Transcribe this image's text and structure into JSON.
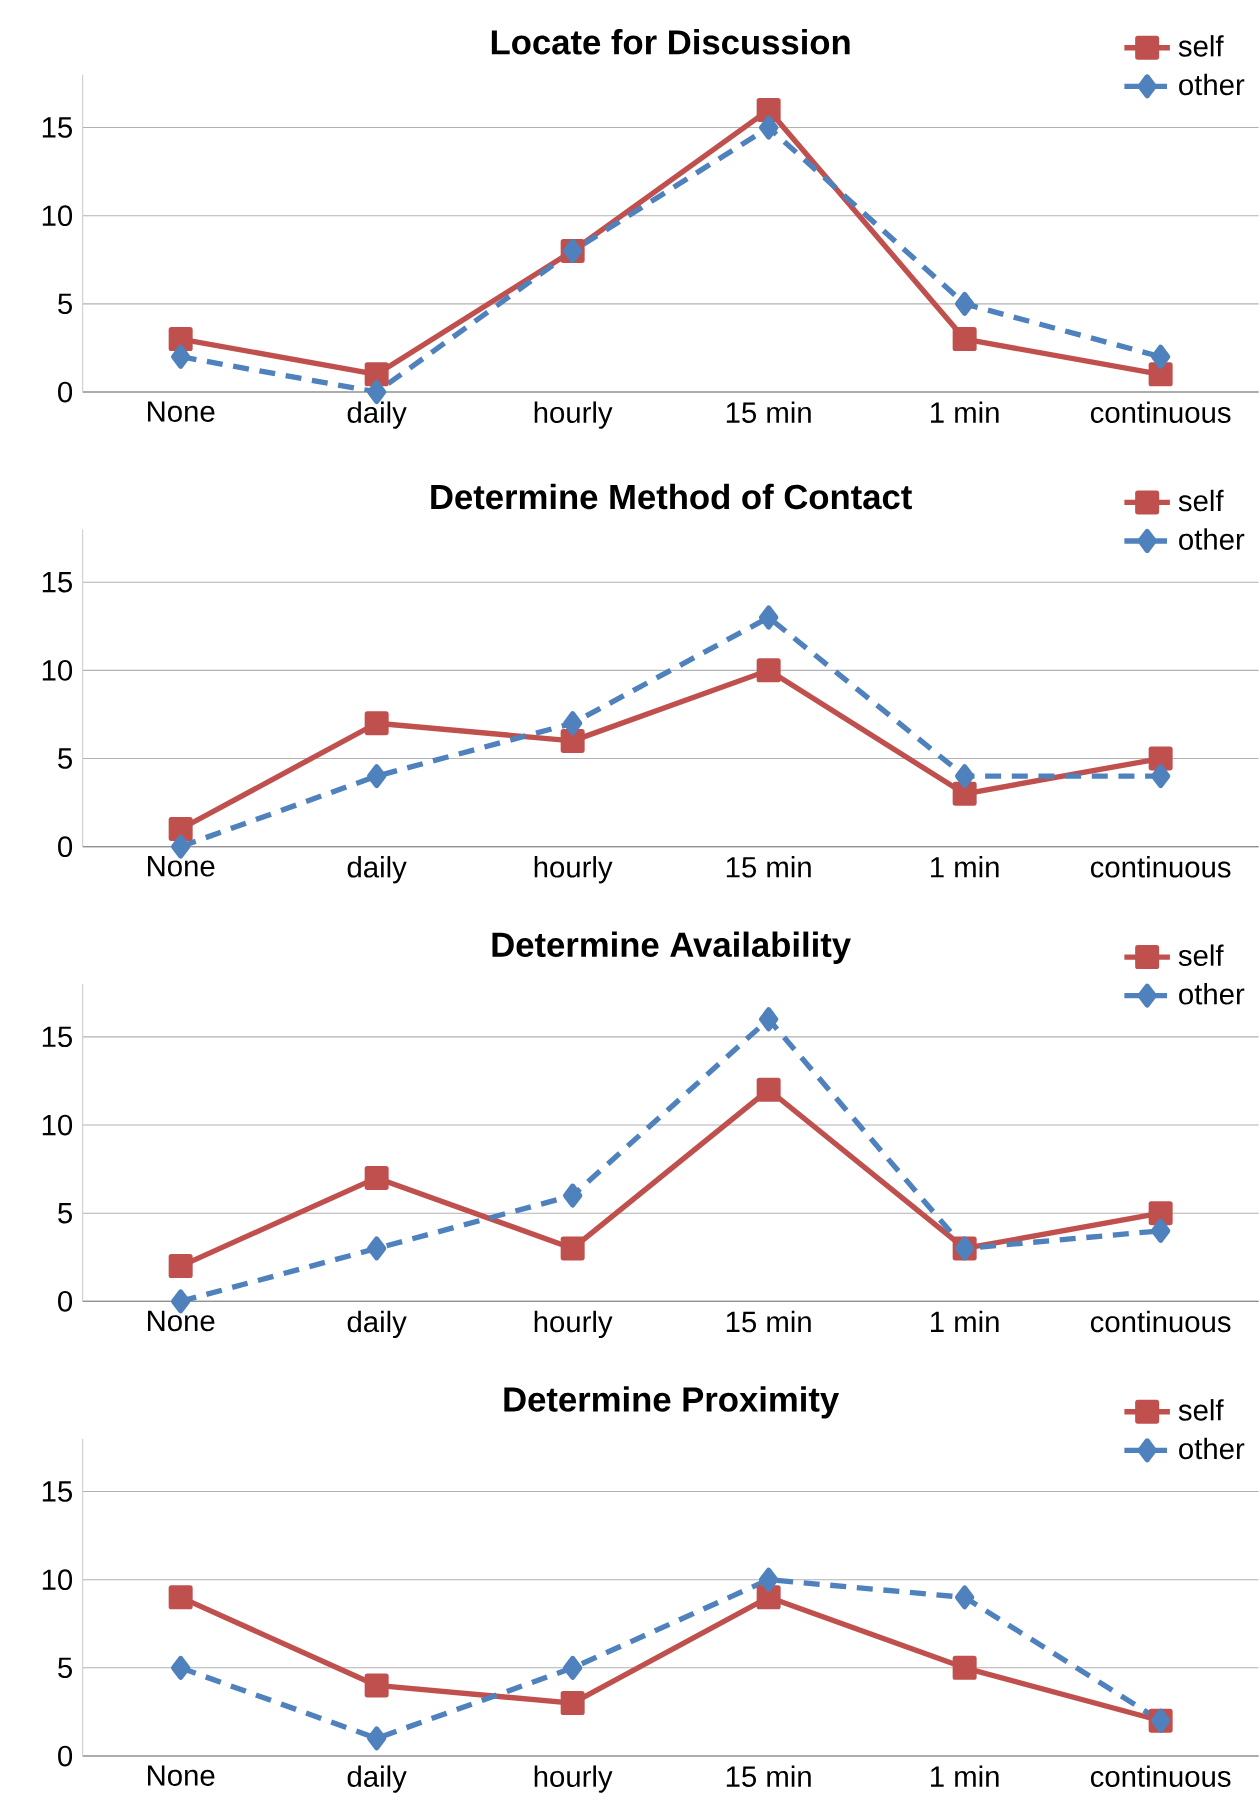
{
  "chart_data": [
    {
      "type": "line",
      "title": "Locate for Discussion",
      "categories": [
        "None",
        "daily",
        "hourly",
        "15 min",
        "1 min",
        "continuous"
      ],
      "ylim": [
        0,
        18
      ],
      "yticks": [
        0,
        5,
        10,
        15
      ],
      "grid": "y",
      "legend": "top right",
      "series": [
        {
          "name": "self",
          "color": "#c0504d",
          "marker": "square",
          "line_style": "solid",
          "values": [
            3,
            1,
            8,
            16,
            3,
            1
          ]
        },
        {
          "name": "other",
          "color": "#4f81bd",
          "marker": "diamond",
          "line_style": "dashed",
          "values": [
            2,
            0,
            8,
            15,
            5,
            2
          ]
        }
      ]
    },
    {
      "type": "line",
      "title": "Determine Method of Contact",
      "categories": [
        "None",
        "daily",
        "hourly",
        "15 min",
        "1 min",
        "continuous"
      ],
      "ylim": [
        0,
        18
      ],
      "yticks": [
        0,
        5,
        10,
        15
      ],
      "grid": "y",
      "legend": "top right",
      "series": [
        {
          "name": "self",
          "color": "#c0504d",
          "marker": "square",
          "line_style": "solid",
          "values": [
            1,
            7,
            6,
            10,
            3,
            5
          ]
        },
        {
          "name": "other",
          "color": "#4f81bd",
          "marker": "diamond",
          "line_style": "dashed",
          "values": [
            0,
            4,
            7,
            13,
            4,
            4
          ]
        }
      ]
    },
    {
      "type": "line",
      "title": "Determine Availability",
      "categories": [
        "None",
        "daily",
        "hourly",
        "15 min",
        "1 min",
        "continuous"
      ],
      "ylim": [
        0,
        18
      ],
      "yticks": [
        0,
        5,
        10,
        15
      ],
      "grid": "y",
      "legend": "top right",
      "series": [
        {
          "name": "self",
          "color": "#c0504d",
          "marker": "square",
          "line_style": "solid",
          "values": [
            2,
            7,
            3,
            12,
            3,
            5
          ]
        },
        {
          "name": "other",
          "color": "#4f81bd",
          "marker": "diamond",
          "line_style": "dashed",
          "values": [
            0,
            3,
            6,
            16,
            3,
            4
          ]
        }
      ]
    },
    {
      "type": "line",
      "title": "Determine Proximity",
      "categories": [
        "None",
        "daily",
        "hourly",
        "15 min",
        "1 min",
        "continuous"
      ],
      "ylim": [
        0,
        18
      ],
      "yticks": [
        0,
        5,
        10,
        15
      ],
      "grid": "y",
      "legend": "top right",
      "series": [
        {
          "name": "self",
          "color": "#c0504d",
          "marker": "square",
          "line_style": "solid",
          "values": [
            9,
            4,
            3,
            9,
            5,
            2
          ]
        },
        {
          "name": "other",
          "color": "#4f81bd",
          "marker": "diamond",
          "line_style": "dashed",
          "values": [
            5,
            1,
            5,
            10,
            9,
            2
          ]
        }
      ]
    }
  ]
}
